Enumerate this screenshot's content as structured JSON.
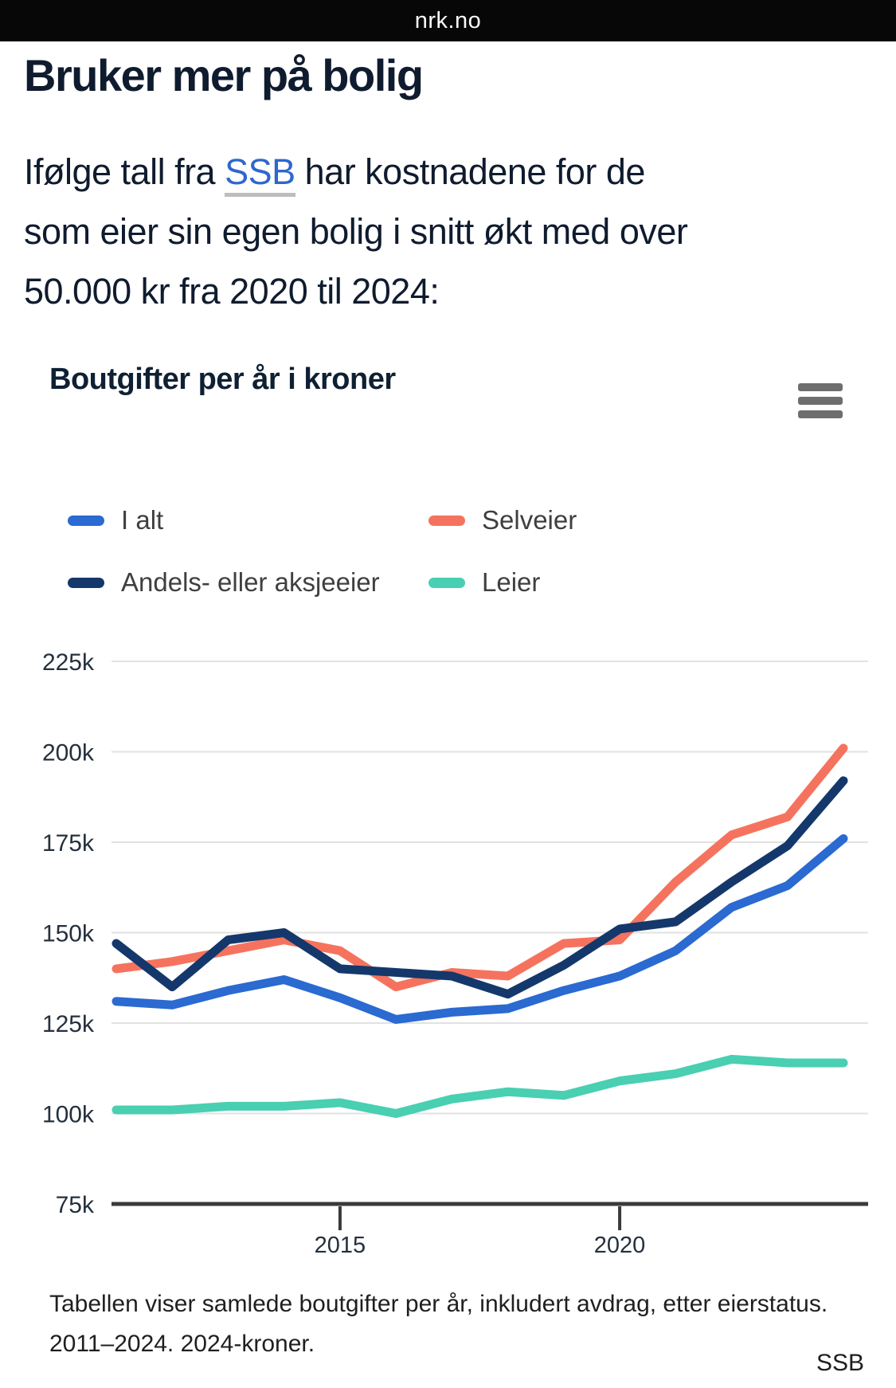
{
  "header": {
    "site": "nrk.no"
  },
  "article": {
    "title": "Bruker mer på bolig",
    "lead": {
      "line1_before": "Ifølge tall fra ",
      "link_text": "SSB",
      "line1_after": " har kostnadene for de",
      "line2": "som eier sin egen bolig i snitt økt med over",
      "line3": "50.000 kr fra 2020 til 2024:"
    }
  },
  "menu": {
    "icon": "hamburger-icon"
  },
  "chart_data": {
    "type": "line",
    "title": "Boutgifter per år i kroner",
    "xlabel": "",
    "ylabel": "boutgifter per år i kroner",
    "values_unit": "thousand kroner (labels shown with k suffix)",
    "x": [
      2011,
      2012,
      2013,
      2014,
      2015,
      2016,
      2017,
      2018,
      2019,
      2020,
      2021,
      2022,
      2023,
      2024
    ],
    "series": [
      {
        "name": "I alt",
        "color": "#2a6ad1",
        "values": [
          131,
          130,
          134,
          137,
          132,
          126,
          128,
          129,
          134,
          138,
          145,
          157,
          163,
          176
        ]
      },
      {
        "name": "Selveier",
        "color": "#f5735e",
        "values": [
          140,
          142,
          145,
          148,
          145,
          135,
          139,
          138,
          147,
          148,
          164,
          177,
          182,
          201
        ]
      },
      {
        "name": "Andels- eller aksjeeier",
        "color": "#14386b",
        "values": [
          147,
          135,
          148,
          150,
          140,
          139,
          138,
          133,
          141,
          151,
          153,
          164,
          174,
          192
        ]
      },
      {
        "name": "Leier",
        "color": "#49cfb1",
        "values": [
          101,
          101,
          102,
          102,
          103,
          100,
          104,
          106,
          105,
          109,
          111,
          115,
          114,
          114
        ]
      }
    ],
    "ylim": [
      75,
      225
    ],
    "xlim": [
      2011,
      2024
    ],
    "yticks": [
      {
        "value": 225,
        "label": "225k"
      },
      {
        "value": 200,
        "label": "200k"
      },
      {
        "value": 175,
        "label": "175k"
      },
      {
        "value": 150,
        "label": "150k"
      },
      {
        "value": 125,
        "label": "125k"
      },
      {
        "value": 100,
        "label": "100k"
      },
      {
        "value": 75,
        "label": "75k"
      }
    ],
    "xticks": [
      {
        "value": 2015,
        "label": "2015"
      },
      {
        "value": 2020,
        "label": "2020"
      }
    ],
    "grid": true,
    "legend_position": "top"
  },
  "caption": {
    "line1": "Tabellen viser samlede boutgifter per år, inkludert avdrag, etter eierstatus.",
    "line2": "2011–2024. 2024-kroner.",
    "source": "SSB"
  },
  "colors": {
    "link": "#2e67cd",
    "gridline": "#e2e2e2",
    "axis": "#3a3a3a",
    "topbar_bg": "#070707"
  }
}
